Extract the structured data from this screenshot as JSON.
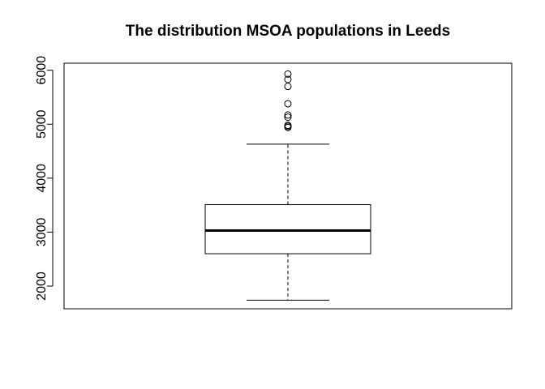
{
  "chart_data": {
    "type": "boxplot",
    "title": "The distribution MSOA populations in Leeds",
    "xlabel": "",
    "ylabel": "",
    "ylim": [
      1580,
      6130
    ],
    "yticks": [
      2000,
      3000,
      4000,
      5000,
      6000
    ],
    "ytick_labels": [
      "2000",
      "3000",
      "4000",
      "5000",
      "6000"
    ],
    "grid": false,
    "box": {
      "whisker_low": 1740,
      "q1": 2600,
      "median": 3030,
      "q3": 3510,
      "whisker_high": 4630
    },
    "outliers": [
      4940,
      4960,
      4980,
      5130,
      5170,
      5380,
      5700,
      5830,
      5930
    ]
  }
}
